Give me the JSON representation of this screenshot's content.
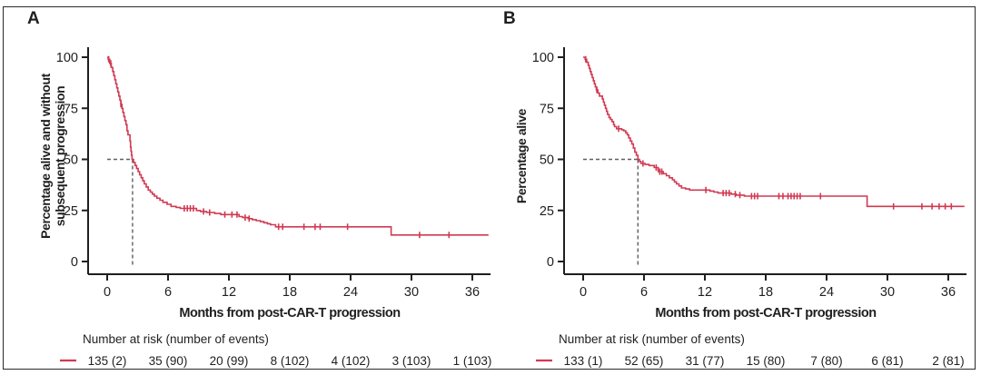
{
  "figure": {
    "background": "#ffffff",
    "frame_color": "#2a2a2a"
  },
  "colors": {
    "curve": "#d03a52",
    "axis": "#1f1f1f",
    "text": "#1f1f1f",
    "median_dash": "#5f5f5f"
  },
  "chart_data": [
    {
      "type": "line",
      "style": "kaplan-meier-step",
      "panel_label": "A",
      "title": "",
      "xlabel": "Months from post-CAR-T progression",
      "ylabel": "Percentage alive and without subsequent progression",
      "ylabel_lines": [
        "Percentage alive and without",
        "subsequent progression"
      ],
      "x_ticks": [
        0,
        6,
        12,
        18,
        24,
        30,
        36
      ],
      "y_ticks": [
        0,
        25,
        50,
        75,
        100
      ],
      "xlim": [
        0,
        37.8
      ],
      "ylim": [
        0,
        100
      ],
      "grid": false,
      "legend_position": "none",
      "median_marker": {
        "x": 2.5,
        "y": 50
      },
      "series": [
        {
          "name": "all-patients",
          "color": "#d03a52",
          "end_time": 37.6,
          "steps": [
            [
              0,
              100
            ],
            [
              0.1,
              99
            ],
            [
              0.25,
              97
            ],
            [
              0.4,
              95
            ],
            [
              0.55,
              93
            ],
            [
              0.65,
              91
            ],
            [
              0.75,
              89
            ],
            [
              0.85,
              87
            ],
            [
              0.95,
              85
            ],
            [
              1.05,
              83
            ],
            [
              1.15,
              81
            ],
            [
              1.25,
              79
            ],
            [
              1.35,
              77
            ],
            [
              1.45,
              75
            ],
            [
              1.55,
              73
            ],
            [
              1.65,
              71
            ],
            [
              1.75,
              69
            ],
            [
              1.85,
              67
            ],
            [
              1.95,
              64
            ],
            [
              2.05,
              62
            ],
            [
              2.25,
              59
            ],
            [
              2.3,
              56
            ],
            [
              2.35,
              54
            ],
            [
              2.4,
              52
            ],
            [
              2.45,
              50
            ],
            [
              2.6,
              48.5
            ],
            [
              2.75,
              47
            ],
            [
              2.9,
              45.5
            ],
            [
              3.05,
              44
            ],
            [
              3.2,
              42.5
            ],
            [
              3.35,
              41
            ],
            [
              3.5,
              39.5
            ],
            [
              3.65,
              38
            ],
            [
              3.85,
              36.5
            ],
            [
              4.05,
              35
            ],
            [
              4.25,
              34
            ],
            [
              4.45,
              33
            ],
            [
              4.65,
              32
            ],
            [
              4.9,
              31
            ],
            [
              5.2,
              30
            ],
            [
              5.5,
              29
            ],
            [
              5.9,
              28
            ],
            [
              6.3,
              27
            ],
            [
              6.8,
              26.5
            ],
            [
              7.2,
              26
            ],
            [
              8.8,
              25
            ],
            [
              9.2,
              24.5
            ],
            [
              9.8,
              24
            ],
            [
              10.6,
              23.5
            ],
            [
              11.2,
              23
            ],
            [
              13.0,
              22
            ],
            [
              13.35,
              21.5
            ],
            [
              13.9,
              21
            ],
            [
              14.3,
              20.5
            ],
            [
              14.7,
              20
            ],
            [
              15.1,
              19.5
            ],
            [
              15.45,
              19
            ],
            [
              15.8,
              18.5
            ],
            [
              16.1,
              18
            ],
            [
              16.6,
              17
            ],
            [
              28.0,
              13
            ]
          ],
          "censor_times": [
            0.15,
            0.35,
            1.35,
            7.6,
            7.9,
            8.2,
            8.5,
            9.5,
            10.1,
            11.6,
            12.3,
            12.8,
            13.6,
            14.0,
            16.9,
            17.3,
            19.4,
            20.5,
            21.0,
            23.7,
            30.8,
            33.7
          ]
        }
      ],
      "risk_table": {
        "title": "Number at risk (number of events)",
        "time_points": [
          0,
          6,
          12,
          18,
          24,
          30,
          36
        ],
        "values": [
          "135 (2)",
          "35 (90)",
          "20 (99)",
          "8 (102)",
          "4 (102)",
          "3 (103)",
          "1 (103)"
        ]
      }
    },
    {
      "type": "line",
      "style": "kaplan-meier-step",
      "panel_label": "B",
      "title": "",
      "xlabel": "Months from post-CAR-T progression",
      "ylabel": "Percentage alive",
      "ylabel_lines": [
        "Percentage alive"
      ],
      "x_ticks": [
        0,
        6,
        12,
        18,
        24,
        30,
        36
      ],
      "y_ticks": [
        0,
        25,
        50,
        75,
        100
      ],
      "xlim": [
        0,
        37.8
      ],
      "ylim": [
        0,
        100
      ],
      "grid": false,
      "legend_position": "none",
      "median_marker": {
        "x": 5.4,
        "y": 50
      },
      "series": [
        {
          "name": "all-patients",
          "color": "#d03a52",
          "end_time": 37.6,
          "steps": [
            [
              0,
              100
            ],
            [
              0.2,
              99
            ],
            [
              0.35,
              97.5
            ],
            [
              0.5,
              96
            ],
            [
              0.6,
              94.5
            ],
            [
              0.7,
              93
            ],
            [
              0.8,
              91.5
            ],
            [
              0.9,
              90
            ],
            [
              1.0,
              88.5
            ],
            [
              1.1,
              87
            ],
            [
              1.2,
              85.5
            ],
            [
              1.3,
              84
            ],
            [
              1.45,
              82.5
            ],
            [
              1.6,
              81
            ],
            [
              1.9,
              79.5
            ],
            [
              2.0,
              78
            ],
            [
              2.1,
              76.5
            ],
            [
              2.2,
              75
            ],
            [
              2.3,
              73.5
            ],
            [
              2.4,
              72
            ],
            [
              2.55,
              70.5
            ],
            [
              2.7,
              69.5
            ],
            [
              2.85,
              68.5
            ],
            [
              3.0,
              67
            ],
            [
              3.1,
              66
            ],
            [
              3.3,
              65
            ],
            [
              3.8,
              64.5
            ],
            [
              4.0,
              64
            ],
            [
              4.2,
              63
            ],
            [
              4.35,
              62
            ],
            [
              4.5,
              60.5
            ],
            [
              4.65,
              59
            ],
            [
              4.8,
              57.5
            ],
            [
              4.95,
              55.5
            ],
            [
              5.1,
              53.5
            ],
            [
              5.25,
              52
            ],
            [
              5.4,
              50
            ],
            [
              5.55,
              49
            ],
            [
              5.7,
              48
            ],
            [
              6.1,
              47.5
            ],
            [
              6.5,
              47
            ],
            [
              7.0,
              46
            ],
            [
              7.4,
              44
            ],
            [
              7.9,
              43
            ],
            [
              8.2,
              42
            ],
            [
              8.5,
              41
            ],
            [
              8.8,
              40
            ],
            [
              9.0,
              39
            ],
            [
              9.2,
              38
            ],
            [
              9.45,
              37
            ],
            [
              9.7,
              36
            ],
            [
              10.1,
              35.5
            ],
            [
              10.5,
              35
            ],
            [
              12.5,
              34.5
            ],
            [
              12.9,
              34
            ],
            [
              13.3,
              33.5
            ],
            [
              14.6,
              33
            ],
            [
              15.1,
              32.5
            ],
            [
              15.9,
              32
            ],
            [
              28.0,
              27
            ]
          ],
          "censor_times": [
            0.25,
            1.35,
            3.5,
            5.9,
            7.2,
            7.55,
            7.75,
            12.1,
            13.8,
            14.1,
            14.4,
            15.0,
            15.45,
            16.6,
            16.9,
            17.2,
            19.3,
            19.7,
            20.2,
            20.5,
            20.8,
            21.1,
            21.4,
            23.4,
            30.6,
            33.4,
            34.4,
            35.1,
            35.7,
            36.3
          ]
        }
      ],
      "risk_table": {
        "title": "Number at risk (number of events)",
        "time_points": [
          0,
          6,
          12,
          18,
          24,
          30,
          36
        ],
        "values": [
          "133 (1)",
          "52 (65)",
          "31 (77)",
          "15 (80)",
          "7 (80)",
          "6 (81)",
          "2 (81)"
        ]
      }
    }
  ]
}
